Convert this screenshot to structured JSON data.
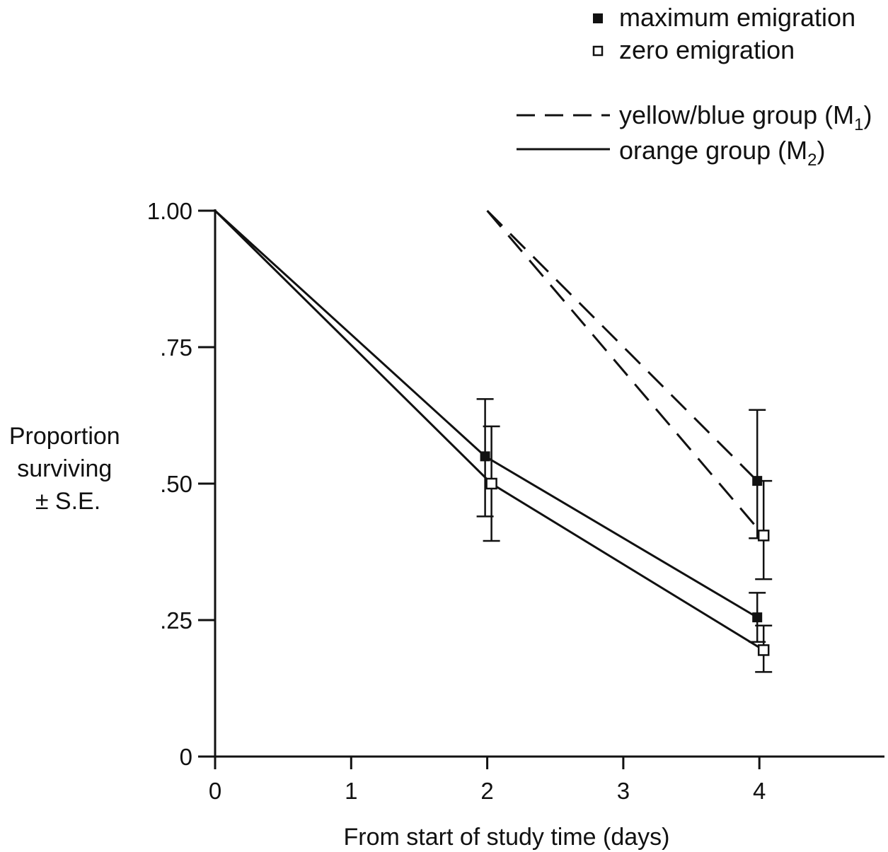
{
  "chart_data": {
    "type": "line",
    "xlabel": "From start of study time (days)",
    "ylabel": [
      "Proportion",
      "surviving",
      "± S.E."
    ],
    "xlim": [
      0,
      4.9
    ],
    "ylim": [
      0,
      1.0
    ],
    "x_ticks": [
      "0",
      "1",
      "2",
      "3",
      "4"
    ],
    "y_ticks": [
      "0",
      ".25",
      ".50",
      ".75",
      "1.00"
    ],
    "legend_markers": {
      "filled": "maximum emigration",
      "open": "zero emigration"
    },
    "legend_lines": {
      "dashed": {
        "text": "yellow/blue group (M",
        "sub": "1",
        "close": ")"
      },
      "solid": {
        "text": "orange group (M",
        "sub": "2",
        "close": ")"
      }
    },
    "series": [
      {
        "group": "orange group (M2)",
        "emigration": "maximum emigration",
        "line": "solid",
        "marker": "filled",
        "points": [
          {
            "x": 0,
            "y": 1.0
          },
          {
            "x": 2,
            "y": 0.55,
            "se_low": 0.44,
            "se_high": 0.655
          },
          {
            "x": 4,
            "y": 0.255,
            "se_low": 0.21,
            "se_high": 0.3
          }
        ]
      },
      {
        "group": "orange group (M2)",
        "emigration": "zero emigration",
        "line": "solid",
        "marker": "open",
        "points": [
          {
            "x": 0,
            "y": 1.0
          },
          {
            "x": 2,
            "y": 0.5,
            "se_low": 0.395,
            "se_high": 0.605
          },
          {
            "x": 4,
            "y": 0.195,
            "se_low": 0.155,
            "se_high": 0.24
          }
        ]
      },
      {
        "group": "yellow/blue group (M1)",
        "emigration": "maximum emigration",
        "line": "dashed",
        "marker": "filled",
        "points": [
          {
            "x": 2,
            "y": 1.0
          },
          {
            "x": 4,
            "y": 0.505,
            "se_low": 0.4,
            "se_high": 0.635
          }
        ]
      },
      {
        "group": "yellow/blue group (M1)",
        "emigration": "zero emigration",
        "line": "dashed",
        "marker": "open",
        "points": [
          {
            "x": 2,
            "y": 1.0
          },
          {
            "x": 4,
            "y": 0.405,
            "se_low": 0.325,
            "se_high": 0.505
          }
        ]
      }
    ],
    "colors": {
      "ink": "#111111",
      "background": "#ffffff"
    }
  }
}
